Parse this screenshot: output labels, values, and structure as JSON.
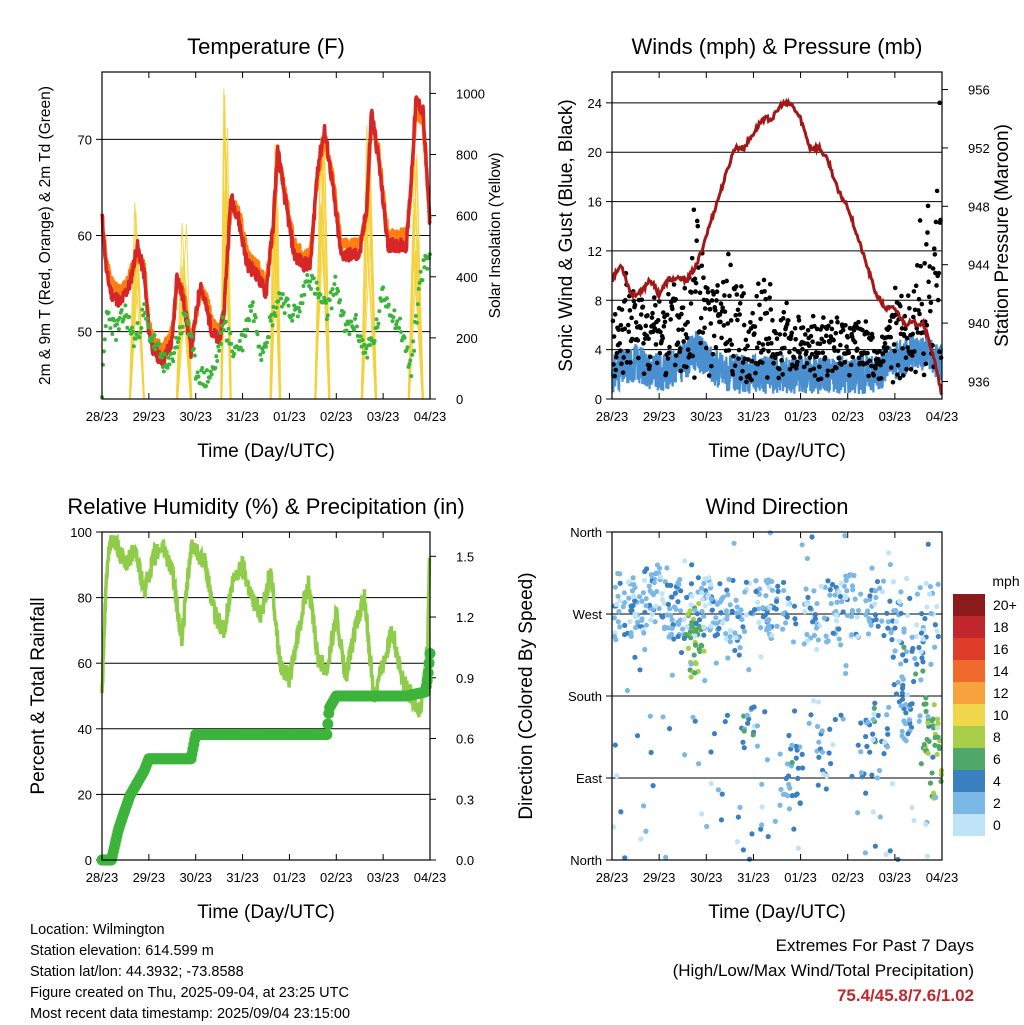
{
  "colors": {
    "red": "#d62728",
    "orange": "#ff7f0e",
    "green": "#3cb43c",
    "yellow": "#f2d13a",
    "black": "#000000",
    "blue": "#4a90d0",
    "maroon": "#a01818",
    "light_green": "#8fcc4a"
  },
  "charts": {
    "temperature": {
      "title": "Temperature (F)",
      "xlabel": "Time (Day/UTC)",
      "ylabel": "2m & 9m T (Red, Orange) & 2m Td (Green)",
      "ylabel_right": "Solar Insolation (Yellow)",
      "x_ticks": [
        "28/23",
        "29/23",
        "30/23",
        "31/23",
        "01/23",
        "02/23",
        "03/23",
        "04/23"
      ],
      "y_ticks": [
        "50",
        "60",
        "70"
      ],
      "y_right_ticks": [
        "0",
        "200",
        "400",
        "600",
        "800",
        "1000"
      ]
    },
    "winds": {
      "title": "Winds (mph) & Pressure (mb)",
      "xlabel": "Time (Day/UTC)",
      "ylabel": "Sonic Wind & Gust (Blue, Black)",
      "ylabel_right": "Station Pressure (Maroon)",
      "x_ticks": [
        "28/23",
        "29/23",
        "30/23",
        "31/23",
        "01/23",
        "02/23",
        "03/23",
        "04/23"
      ],
      "y_ticks": [
        "0",
        "4",
        "8",
        "12",
        "16",
        "20",
        "24"
      ],
      "y_right_ticks": [
        "936",
        "940",
        "944",
        "948",
        "952",
        "956"
      ]
    },
    "humidity": {
      "title": "Relative Humidity (%) & Precipitation (in)",
      "xlabel": "Time (Day/UTC)",
      "ylabel": "Percent & Total Rainfall",
      "x_ticks": [
        "28/23",
        "29/23",
        "30/23",
        "31/23",
        "01/23",
        "02/23",
        "03/23",
        "04/23"
      ],
      "y_ticks": [
        "0",
        "20",
        "40",
        "60",
        "80",
        "100"
      ],
      "y_right_ticks": [
        "0.0",
        "0.3",
        "0.6",
        "0.9",
        "1.2",
        "1.5"
      ]
    },
    "direction": {
      "title": "Wind Direction",
      "xlabel": "Time (Day/UTC)",
      "ylabel": "Direction (Colored By Speed)",
      "x_ticks": [
        "28/23",
        "29/23",
        "30/23",
        "31/23",
        "01/23",
        "02/23",
        "03/23",
        "04/23"
      ],
      "y_ticks": [
        "North",
        "East",
        "South",
        "West",
        "North"
      ],
      "legend_title": "mph",
      "legend_labels": [
        "20+",
        "18",
        "16",
        "14",
        "12",
        "10",
        "8",
        "6",
        "4",
        "2",
        "0"
      ],
      "legend_colors": [
        "#8b1a1a",
        "#c0272d",
        "#e03c2a",
        "#f06a2e",
        "#f7a23c",
        "#f0d64a",
        "#a8cf4a",
        "#4fa86a",
        "#3a7fc0",
        "#7cb8e6",
        "#bfe3f7"
      ]
    }
  },
  "chart_data": [
    {
      "type": "line",
      "title": "Temperature (F)",
      "xlabel": "Time (Day/UTC)",
      "ylabel": "2m & 9m T (Red, Orange) & 2m Td (Green)",
      "x_unit": "days since 28/23 UTC",
      "xlim": [
        0,
        7
      ],
      "ylim": [
        43,
        77
      ],
      "y2lim": [
        0,
        1070
      ],
      "series": [
        {
          "name": "2m T",
          "axis": "left",
          "color": "#d62728",
          "x": [
            0,
            0.1,
            0.2,
            0.4,
            0.6,
            0.75,
            0.9,
            1.0,
            1.1,
            1.3,
            1.5,
            1.6,
            1.75,
            1.9,
            2.1,
            2.2,
            2.35,
            2.5,
            2.6,
            2.75,
            2.9,
            3.1,
            3.3,
            3.5,
            3.65,
            3.75,
            3.9,
            4.1,
            4.3,
            4.45,
            4.6,
            4.75,
            4.9,
            5.1,
            5.3,
            5.5,
            5.65,
            5.75,
            5.9,
            6.1,
            6.3,
            6.5,
            6.6,
            6.7,
            6.85,
            7.0
          ],
          "y": [
            62,
            56,
            54,
            53,
            55,
            59,
            56,
            50,
            48,
            47,
            49,
            56,
            53,
            48,
            55,
            53,
            50,
            49,
            52,
            64,
            62,
            57,
            56,
            54,
            61,
            69,
            64,
            58,
            57,
            57,
            67,
            71,
            66,
            58,
            58,
            58,
            63,
            73,
            68,
            59,
            59,
            59,
            66,
            74,
            73,
            61
          ]
        },
        {
          "name": "9m T",
          "axis": "left",
          "color": "#ff7f0e",
          "x": [
            0,
            0.1,
            0.2,
            0.4,
            0.6,
            0.75,
            0.9,
            1.0,
            1.1,
            1.3,
            1.5,
            1.6,
            1.75,
            1.9,
            2.1,
            2.2,
            2.35,
            2.5,
            2.6,
            2.75,
            2.9,
            3.1,
            3.3,
            3.5,
            3.65,
            3.75,
            3.9,
            4.1,
            4.3,
            4.45,
            4.6,
            4.75,
            4.9,
            5.1,
            5.3,
            5.5,
            5.65,
            5.75,
            5.9,
            6.1,
            6.3,
            6.5,
            6.6,
            6.7,
            6.85,
            7.0
          ],
          "y": [
            62,
            57,
            55,
            54,
            56,
            58,
            57,
            51,
            49,
            48,
            50,
            55,
            54,
            49,
            54,
            54,
            51,
            50,
            52,
            63,
            63,
            58,
            57,
            55,
            60,
            68,
            65,
            59,
            58,
            58,
            66,
            70,
            67,
            59,
            59,
            59,
            62,
            72,
            69,
            60,
            60,
            60,
            65,
            73,
            72,
            61
          ]
        },
        {
          "name": "2m Td",
          "axis": "left",
          "color": "#3cb43c",
          "x": [
            0,
            0.1,
            0.3,
            0.5,
            0.7,
            0.9,
            1.0,
            1.2,
            1.4,
            1.6,
            1.8,
            2.0,
            2.2,
            2.4,
            2.6,
            2.8,
            3.0,
            3.2,
            3.4,
            3.6,
            3.8,
            4.0,
            4.2,
            4.4,
            4.6,
            4.8,
            5.0,
            5.2,
            5.4,
            5.6,
            5.8,
            6.0,
            6.2,
            6.4,
            6.6,
            6.8,
            7.0
          ],
          "y": [
            44,
            52,
            50,
            52,
            49,
            52,
            50,
            48,
            46,
            49,
            52,
            46,
            45,
            46,
            51,
            48,
            49,
            53,
            48,
            51,
            54,
            52,
            52,
            56,
            54,
            52,
            55,
            50,
            51,
            48,
            49,
            54,
            52,
            50,
            46,
            56,
            58
          ]
        },
        {
          "name": "Solar Insolation",
          "axis": "right",
          "color": "#f2d13a",
          "x": [
            0.6,
            0.75,
            0.9,
            1.6,
            1.75,
            1.9,
            2.55,
            2.65,
            2.75,
            3.6,
            3.7,
            3.8,
            4.55,
            4.7,
            4.85,
            5.55,
            5.7,
            5.85,
            6.55,
            6.7,
            6.85
          ],
          "y": [
            0,
            680,
            0,
            0,
            580,
            0,
            0,
            1050,
            0,
            0,
            900,
            0,
            0,
            880,
            0,
            0,
            900,
            0,
            0,
            850,
            0
          ]
        }
      ]
    },
    {
      "type": "line",
      "title": "Winds (mph) & Pressure (mb)",
      "xlabel": "Time (Day/UTC)",
      "ylabel": "Sonic Wind & Gust (Blue, Black)",
      "x_unit": "days since 28/23 UTC",
      "xlim": [
        0,
        7
      ],
      "ylim": [
        0,
        26.5
      ],
      "y2lim": [
        934.8,
        957.2
      ],
      "series": [
        {
          "name": "Station Pressure",
          "axis": "right",
          "color": "#a01818",
          "x": [
            0,
            0.2,
            0.4,
            0.6,
            0.8,
            1.0,
            1.2,
            1.4,
            1.6,
            1.8,
            2.0,
            2.2,
            2.4,
            2.6,
            2.8,
            3.0,
            3.2,
            3.4,
            3.6,
            3.8,
            4.0,
            4.2,
            4.4,
            4.6,
            4.8,
            5.0,
            5.2,
            5.4,
            5.6,
            5.8,
            6.0,
            6.2,
            6.4,
            6.6,
            6.8,
            7.0
          ],
          "y": [
            943,
            944,
            942,
            942,
            943,
            942,
            943,
            943,
            943,
            944,
            946,
            948,
            950,
            952,
            952,
            953,
            954,
            954,
            955,
            955,
            954,
            952,
            952,
            951,
            949,
            948,
            946,
            944,
            942,
            941,
            941,
            940,
            940,
            940,
            938,
            935
          ]
        },
        {
          "name": "Sonic Wind",
          "axis": "left",
          "color": "#4a90d0",
          "x": [
            0,
            0.5,
            1.0,
            1.5,
            1.8,
            2.0,
            2.5,
            3.0,
            3.5,
            4.0,
            4.5,
            5.0,
            5.5,
            6.0,
            6.5,
            7.0
          ],
          "y": [
            2,
            3,
            2,
            3,
            4,
            3,
            2,
            2,
            2,
            2,
            2,
            2,
            2,
            3,
            4,
            3
          ]
        },
        {
          "name": "Gust",
          "axis": "left",
          "color": "#000000",
          "x": [
            0,
            0.3,
            0.6,
            0.9,
            1.2,
            1.5,
            1.75,
            1.85,
            2.0,
            2.3,
            2.6,
            2.9,
            3.2,
            3.5,
            3.7,
            3.9,
            4.2,
            4.5,
            4.8,
            5.1,
            5.4,
            5.7,
            6.0,
            6.2,
            6.4,
            6.6,
            6.8,
            7.0
          ],
          "y": [
            6,
            10,
            9,
            8,
            10,
            8,
            21,
            15,
            9,
            10,
            12,
            6,
            12,
            6,
            8,
            7,
            6,
            7,
            6,
            7,
            6,
            4,
            9,
            8,
            9,
            18,
            13,
            24
          ]
        }
      ]
    },
    {
      "type": "line",
      "title": "Relative Humidity (%) & Precipitation (in)",
      "xlabel": "Time (Day/UTC)",
      "ylabel": "Percent & Total Rainfall",
      "x_unit": "days since 28/23 UTC",
      "xlim": [
        0,
        7
      ],
      "ylim": [
        0,
        100
      ],
      "y2lim": [
        0,
        1.62
      ],
      "series": [
        {
          "name": "Relative Humidity",
          "axis": "left",
          "color": "#8fcc4a",
          "x": [
            0,
            0.1,
            0.2,
            0.3,
            0.5,
            0.7,
            0.9,
            1.1,
            1.3,
            1.5,
            1.7,
            1.9,
            2.0,
            2.2,
            2.4,
            2.6,
            2.8,
            3.0,
            3.2,
            3.4,
            3.6,
            3.8,
            4.0,
            4.2,
            4.4,
            4.6,
            4.8,
            5.0,
            5.2,
            5.4,
            5.6,
            5.8,
            6.0,
            6.2,
            6.4,
            6.6,
            6.8,
            6.95,
            7.0
          ],
          "y": [
            50,
            88,
            98,
            96,
            90,
            95,
            82,
            92,
            96,
            88,
            67,
            95,
            95,
            90,
            75,
            70,
            85,
            90,
            80,
            75,
            88,
            60,
            55,
            70,
            85,
            62,
            58,
            75,
            55,
            70,
            80,
            50,
            60,
            70,
            55,
            50,
            45,
            65,
            99
          ]
        },
        {
          "name": "Total Rainfall",
          "axis": "right",
          "color": "#3cb43c",
          "x": [
            0,
            0.2,
            0.25,
            0.35,
            0.45,
            0.6,
            0.75,
            0.9,
            1.0,
            1.3,
            1.6,
            1.9,
            2.0,
            2.5,
            3.0,
            3.5,
            4.0,
            4.5,
            4.8,
            4.85,
            5.0,
            5.5,
            6.0,
            6.5,
            6.9,
            6.95,
            7.0
          ],
          "y": [
            0,
            0,
            0.05,
            0.15,
            0.22,
            0.32,
            0.38,
            0.44,
            0.5,
            0.5,
            0.5,
            0.5,
            0.62,
            0.62,
            0.62,
            0.62,
            0.62,
            0.62,
            0.62,
            0.75,
            0.81,
            0.81,
            0.81,
            0.81,
            0.83,
            0.9,
            1.02
          ]
        }
      ]
    },
    {
      "type": "scatter",
      "title": "Wind Direction",
      "xlabel": "Time (Day/UTC)",
      "ylabel": "Direction (Colored By Speed)",
      "x_unit": "days since 28/23 UTC",
      "y_unit": "degrees (0=North, 90=East, 180=South, 270=West, 360=North)",
      "xlim": [
        0,
        7
      ],
      "ylim": [
        360,
        0
      ],
      "series": [
        {
          "name": "Wind Direction",
          "x": [
            0.2,
            0.5,
            0.8,
            1.0,
            1.2,
            1.5,
            1.7,
            1.75,
            1.8,
            2.0,
            2.3,
            2.6,
            2.9,
            3.2,
            3.4,
            3.7,
            3.9,
            4.2,
            4.5,
            4.8,
            5.1,
            5.4,
            5.7,
            6.0,
            6.1,
            6.3,
            6.5,
            6.7,
            6.8,
            6.9
          ],
          "y": [
            280,
            275,
            285,
            290,
            270,
            280,
            250,
            240,
            230,
            275,
            265,
            255,
            150,
            280,
            270,
            90,
            95,
            260,
            110,
            270,
            280,
            120,
            150,
            250,
            200,
            140,
            230,
            140,
            150,
            100
          ],
          "speed": [
            2,
            3,
            3,
            2,
            2,
            3,
            6,
            7,
            6,
            2,
            2,
            3,
            4,
            2,
            2,
            3,
            4,
            2,
            3,
            2,
            2,
            3,
            4,
            3,
            4,
            3,
            4,
            6,
            7,
            6
          ]
        }
      ]
    }
  ],
  "footer": {
    "location": "Location: Wilmington",
    "elevation": "Station elevation: 614.599 m",
    "latlon": "Station lat/lon: 44.3932; -73.8588",
    "created": "Figure created on Thu, 2025-09-04, at 23:25 UTC",
    "recent": "Most recent data timestamp: 2025/09/04 23:15:00",
    "extremes_title": "Extremes For Past 7 Days",
    "extremes_sub": "(High/Low/Max Wind/Total Precipitation)",
    "extremes_values": "75.4/45.8/7.6/1.02",
    "extremes_color": "#c1272d"
  }
}
